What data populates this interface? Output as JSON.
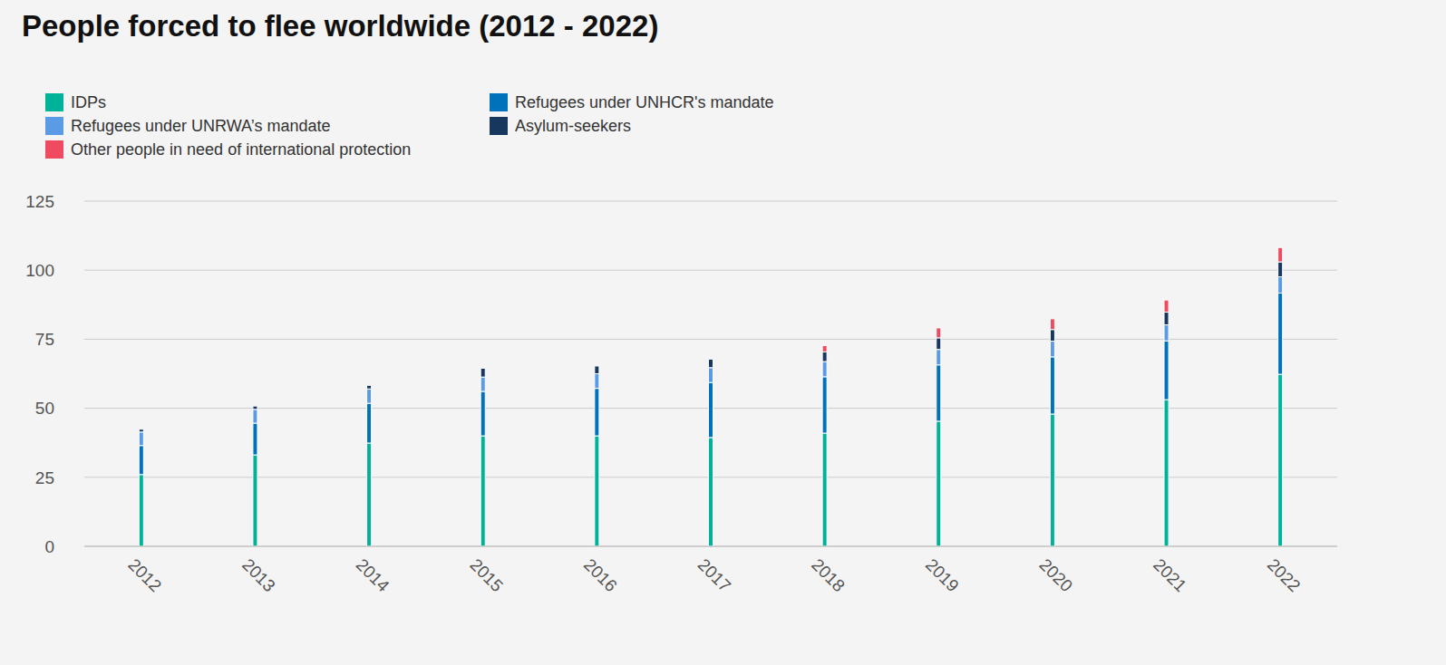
{
  "chart_data": {
    "type": "bar",
    "title": "People forced to flee worldwide (2012 - 2022)",
    "categories": [
      "2012",
      "2013",
      "2014",
      "2015",
      "2016",
      "2017",
      "2018",
      "2019",
      "2020",
      "2021",
      "2022"
    ],
    "series": [
      {
        "name": "IDPs",
        "color": "#00b398",
        "values": [
          26.0,
          33.1,
          37.4,
          40.0,
          40.0,
          39.4,
          41.0,
          45.3,
          47.9,
          53.1,
          62.3
        ]
      },
      {
        "name": "Refugees under UNHCR's mandate",
        "color": "#0072bc",
        "values": [
          10.5,
          11.5,
          14.4,
          16.1,
          17.2,
          19.9,
          20.4,
          20.4,
          20.7,
          21.3,
          29.4
        ]
      },
      {
        "name": "Refugees under UNRWA’s mandate",
        "color": "#5b9be6",
        "values": [
          4.9,
          5.0,
          5.2,
          5.2,
          5.3,
          5.4,
          5.5,
          5.6,
          5.7,
          5.8,
          5.9
        ]
      },
      {
        "name": "Asylum-seekers",
        "color": "#18375f",
        "values": [
          1.0,
          1.2,
          1.3,
          3.2,
          2.8,
          3.1,
          3.5,
          4.2,
          4.2,
          4.6,
          5.4
        ]
      },
      {
        "name": "Other people in need of international protection",
        "color": "#ef4a60",
        "values": [
          0,
          0,
          0,
          0,
          0,
          0,
          2.3,
          3.6,
          3.9,
          4.4,
          5.2
        ]
      }
    ],
    "ylim": [
      0,
      125
    ],
    "yticks": [
      0,
      25,
      50,
      75,
      100,
      125
    ],
    "grid": true,
    "stacked": true,
    "legend": "top"
  }
}
